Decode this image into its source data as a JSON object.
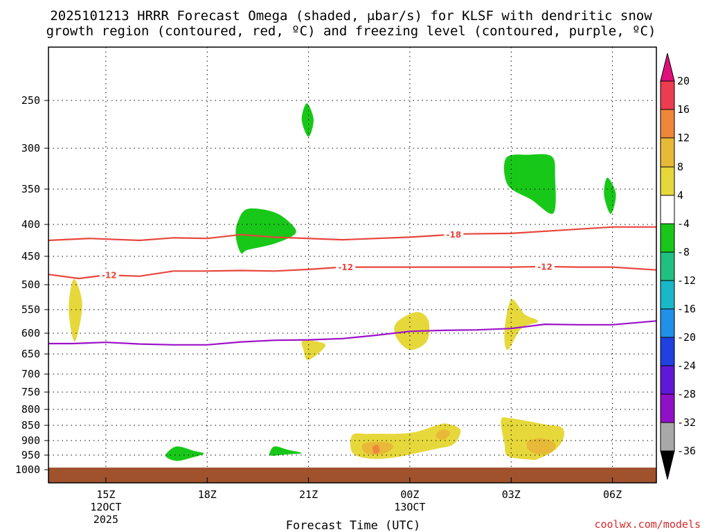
{
  "chart_data": {
    "type": "heatmap",
    "title_line1": "2025101213 HRRR Forecast Omega (shaded, μbar/s) for KLSF with dendritic snow",
    "title_line2": "growth region (contoured, red, ºC) and freezing level (contoured, purple, ºC)",
    "xlabel": "Forecast Time (UTC)",
    "watermark": "coolwx.com/models",
    "x_range_hours": [
      13.3,
      31.3
    ],
    "x_ticks": [
      {
        "hour": 15,
        "label": "15Z",
        "sub1": "12OCT",
        "sub2": "2025"
      },
      {
        "hour": 18,
        "label": "18Z",
        "sub1": "",
        "sub2": ""
      },
      {
        "hour": 21,
        "label": "21Z",
        "sub1": "",
        "sub2": ""
      },
      {
        "hour": 24,
        "label": "00Z",
        "sub1": "13OCT",
        "sub2": ""
      },
      {
        "hour": 27,
        "label": "03Z",
        "sub1": "",
        "sub2": ""
      },
      {
        "hour": 30,
        "label": "06Z",
        "sub1": "",
        "sub2": ""
      }
    ],
    "pressure_levels": [
      "250",
      "300",
      "350",
      "400",
      "450",
      "500",
      "550",
      "600",
      "650",
      "700",
      "750",
      "800",
      "850",
      "900",
      "950",
      "1000"
    ],
    "colorbar": {
      "labels": [
        "20",
        "16",
        "12",
        "8",
        "4",
        "-4",
        "-8",
        "-12",
        "-16",
        "-20",
        "-24",
        "-28",
        "-32",
        "-36"
      ],
      "colors": [
        "#ec3c50",
        "#f0863a",
        "#e8b838",
        "#e6d83a",
        "#ffffff",
        "#18c818",
        "#20c080",
        "#18b8c8",
        "#2090e8",
        "#2040e0",
        "#6018d8",
        "#9010c8",
        "#a8a8a8"
      ],
      "top_arrow_color": "#e0107a",
      "bottom_arrow_color": "#000000"
    },
    "ground_color": "#a0522d",
    "contours": [
      {
        "name": "dgz-minus18",
        "label": "-18",
        "color": "#e8453c",
        "points": [
          [
            13.3,
            425
          ],
          [
            14.5,
            422
          ],
          [
            16,
            425
          ],
          [
            17,
            421
          ],
          [
            18,
            422
          ],
          [
            19,
            416
          ],
          [
            20,
            420
          ],
          [
            22,
            424
          ],
          [
            24,
            420
          ],
          [
            25.5,
            415
          ],
          [
            27,
            414
          ],
          [
            28.5,
            409
          ],
          [
            30,
            404
          ],
          [
            31.3,
            404
          ]
        ],
        "label_hours": [
          25.3
        ]
      },
      {
        "name": "dgz-minus12",
        "label": "-12",
        "color": "#e8453c",
        "points": [
          [
            13.3,
            482
          ],
          [
            14.2,
            489
          ],
          [
            15,
            483
          ],
          [
            16,
            485
          ],
          [
            17,
            476
          ],
          [
            18,
            476
          ],
          [
            19,
            475
          ],
          [
            20,
            476
          ],
          [
            21,
            473
          ],
          [
            22,
            469
          ],
          [
            24,
            469
          ],
          [
            26,
            469
          ],
          [
            27,
            469
          ],
          [
            28,
            468
          ],
          [
            29,
            469
          ],
          [
            30,
            469
          ],
          [
            31.3,
            474
          ]
        ],
        "label_hours": [
          15.1,
          22.1,
          28.0
        ]
      },
      {
        "name": "freezing-level",
        "label": "",
        "color": "#9c10c8",
        "points": [
          [
            13.3,
            625
          ],
          [
            14,
            625
          ],
          [
            15,
            622
          ],
          [
            16,
            626
          ],
          [
            17,
            628
          ],
          [
            18,
            628
          ],
          [
            19,
            621
          ],
          [
            20,
            617
          ],
          [
            21,
            616
          ],
          [
            22,
            613
          ],
          [
            23,
            605
          ],
          [
            24,
            596
          ],
          [
            25,
            594
          ],
          [
            26,
            593
          ],
          [
            27,
            590
          ],
          [
            28,
            581
          ],
          [
            29,
            582
          ],
          [
            30,
            582
          ],
          [
            31.3,
            574
          ]
        ],
        "label_hours": []
      }
    ],
    "omega_regions": [
      {
        "name": "yellow",
        "value_range": "4 to 8",
        "color": "#e6d83a",
        "shapes": [
          [
            [
              14.05,
              490
            ],
            [
              14.3,
              540
            ],
            [
              14.08,
              620
            ],
            [
              13.9,
              550
            ]
          ],
          [
            [
              20.85,
              618
            ],
            [
              21.5,
              628
            ],
            [
              21.0,
              665
            ],
            [
              20.85,
              640
            ]
          ],
          [
            [
              23.6,
              578
            ],
            [
              24.2,
              555
            ],
            [
              24.55,
              573
            ],
            [
              24.5,
              620
            ],
            [
              24.0,
              640
            ],
            [
              23.6,
              610
            ]
          ],
          [
            [
              26.8,
              598
            ],
            [
              27.0,
              530
            ],
            [
              27.4,
              560
            ],
            [
              27.8,
              575
            ],
            [
              27.3,
              590
            ],
            [
              26.9,
              640
            ]
          ],
          [
            [
              22.3,
              882
            ],
            [
              22.8,
              878
            ],
            [
              24.0,
              875
            ],
            [
              24.8,
              850
            ],
            [
              25.1,
              845
            ],
            [
              25.5,
              865
            ],
            [
              25.3,
              912
            ],
            [
              24.8,
              928
            ],
            [
              24.0,
              948
            ],
            [
              23.4,
              960
            ],
            [
              22.8,
              962
            ],
            [
              22.3,
              942
            ]
          ],
          [
            [
              26.7,
              833
            ],
            [
              27.0,
              828
            ],
            [
              28.0,
              847
            ],
            [
              28.5,
              857
            ],
            [
              28.55,
              892
            ],
            [
              28.3,
              932
            ],
            [
              27.8,
              963
            ],
            [
              27.5,
              965
            ],
            [
              26.9,
              953
            ],
            [
              26.8,
              910
            ]
          ]
        ]
      },
      {
        "name": "orange-light",
        "value_range": "8 to 12",
        "color": "#e8b838",
        "shapes": [
          [
            [
              22.6,
              913
            ],
            [
              23.0,
              905
            ],
            [
              23.4,
              908
            ],
            [
              23.5,
              925
            ],
            [
              23.2,
              945
            ],
            [
              22.7,
              944
            ]
          ],
          [
            [
              24.8,
              876
            ],
            [
              25.0,
              863
            ],
            [
              25.2,
              874
            ],
            [
              25.0,
              897
            ],
            [
              24.8,
              890
            ]
          ],
          [
            [
              27.5,
              902
            ],
            [
              27.9,
              893
            ],
            [
              28.3,
              910
            ],
            [
              28.2,
              940
            ],
            [
              27.8,
              947
            ],
            [
              27.5,
              930
            ]
          ]
        ]
      },
      {
        "name": "orange-dark",
        "value_range": "12 to 16",
        "color": "#f0863a",
        "shapes": [
          [
            [
              22.9,
              922
            ],
            [
              23.05,
              915
            ],
            [
              23.1,
              938
            ],
            [
              22.95,
              945
            ]
          ]
        ]
      },
      {
        "name": "green",
        "value_range": "-8 to -4",
        "color": "#18c818",
        "shapes": [
          [
            [
              20.95,
              253
            ],
            [
              21.15,
              270
            ],
            [
              21.0,
              288
            ],
            [
              20.8,
              270
            ]
          ],
          [
            [
              26.85,
              312
            ],
            [
              27.5,
              308
            ],
            [
              28.2,
              310
            ],
            [
              28.3,
              335
            ],
            [
              28.25,
              384
            ],
            [
              27.6,
              365
            ],
            [
              26.9,
              345
            ]
          ],
          [
            [
              29.85,
              336
            ],
            [
              30.1,
              357
            ],
            [
              29.95,
              385
            ],
            [
              29.75,
              358
            ]
          ],
          [
            [
              18.9,
              397
            ],
            [
              19.2,
              378
            ],
            [
              20.0,
              383
            ],
            [
              20.5,
              400
            ],
            [
              20.6,
              415
            ],
            [
              20.0,
              430
            ],
            [
              19.2,
              440
            ],
            [
              19.0,
              445
            ],
            [
              18.85,
              420
            ]
          ],
          [
            [
              16.8,
              943
            ],
            [
              17.1,
              920
            ],
            [
              17.6,
              935
            ],
            [
              17.9,
              945
            ],
            [
              17.5,
              960
            ],
            [
              17.1,
              970
            ],
            [
              16.8,
              958
            ]
          ],
          [
            [
              19.85,
              942
            ],
            [
              20.0,
              920
            ],
            [
              20.4,
              932
            ],
            [
              20.8,
              943
            ],
            [
              20.3,
              948
            ],
            [
              19.9,
              952
            ]
          ]
        ]
      }
    ]
  }
}
